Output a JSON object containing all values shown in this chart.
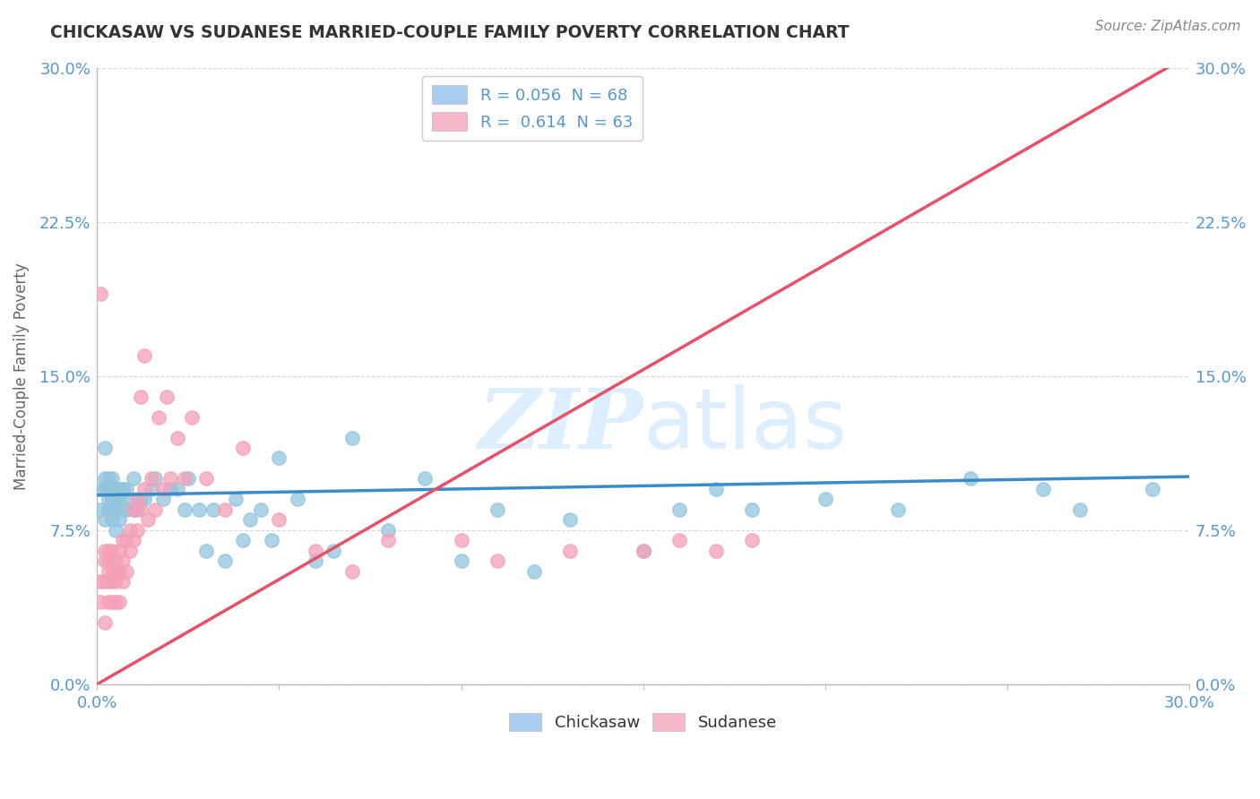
{
  "title": "CHICKASAW VS SUDANESE MARRIED-COUPLE FAMILY POVERTY CORRELATION CHART",
  "source": "Source: ZipAtlas.com",
  "ylabel": "Married-Couple Family Poverty",
  "xlim": [
    0.0,
    0.3
  ],
  "ylim": [
    0.0,
    0.3
  ],
  "xtick_vals": [
    0.0,
    0.05,
    0.1,
    0.15,
    0.2,
    0.25,
    0.3
  ],
  "xtick_labels_show": [
    "0.0%",
    "",
    "",
    "",
    "",
    "",
    "30.0%"
  ],
  "ytick_vals": [
    0.0,
    0.075,
    0.15,
    0.225,
    0.3
  ],
  "ytick_labels": [
    "0.0%",
    "7.5%",
    "15.0%",
    "22.5%",
    "30.0%"
  ],
  "chickasaw_R": 0.056,
  "chickasaw_N": 68,
  "sudanese_R": 0.614,
  "sudanese_N": 63,
  "chickasaw_color": "#92c5de",
  "sudanese_color": "#f4a0b8",
  "chickasaw_line_color": "#3a8cc8",
  "sudanese_line_color": "#e8506a",
  "sudanese_line_dash_color": "#f4a0b8",
  "title_color": "#333333",
  "axis_color": "#5599cc",
  "watermark_color": "#ddeeff",
  "legend_box_chickasaw": "#aaccee",
  "legend_box_sudanese": "#f4b8c8",
  "background_color": "#ffffff",
  "grid_color": "#cccccc",
  "marker_size": 120,
  "chickasaw_line_intercept": 0.092,
  "chickasaw_line_slope": 0.03,
  "sudanese_line_intercept": 0.0,
  "sudanese_line_slope": 1.02,
  "chickasaw_x": [
    0.001,
    0.001,
    0.002,
    0.002,
    0.002,
    0.002,
    0.003,
    0.003,
    0.003,
    0.003,
    0.004,
    0.004,
    0.004,
    0.004,
    0.005,
    0.005,
    0.005,
    0.005,
    0.006,
    0.006,
    0.006,
    0.007,
    0.007,
    0.008,
    0.008,
    0.009,
    0.01,
    0.01,
    0.011,
    0.012,
    0.013,
    0.015,
    0.016,
    0.018,
    0.02,
    0.022,
    0.024,
    0.025,
    0.028,
    0.03,
    0.032,
    0.035,
    0.038,
    0.04,
    0.042,
    0.045,
    0.048,
    0.05,
    0.055,
    0.06,
    0.065,
    0.07,
    0.08,
    0.09,
    0.1,
    0.11,
    0.12,
    0.13,
    0.15,
    0.16,
    0.17,
    0.18,
    0.2,
    0.22,
    0.24,
    0.26,
    0.27,
    0.29
  ],
  "chickasaw_y": [
    0.085,
    0.095,
    0.08,
    0.095,
    0.1,
    0.115,
    0.085,
    0.09,
    0.095,
    0.1,
    0.08,
    0.085,
    0.09,
    0.1,
    0.075,
    0.085,
    0.09,
    0.095,
    0.08,
    0.09,
    0.095,
    0.085,
    0.095,
    0.085,
    0.095,
    0.09,
    0.085,
    0.1,
    0.085,
    0.09,
    0.09,
    0.095,
    0.1,
    0.09,
    0.095,
    0.095,
    0.085,
    0.1,
    0.085,
    0.065,
    0.085,
    0.06,
    0.09,
    0.07,
    0.08,
    0.085,
    0.07,
    0.11,
    0.09,
    0.06,
    0.065,
    0.12,
    0.075,
    0.1,
    0.06,
    0.085,
    0.055,
    0.08,
    0.065,
    0.085,
    0.095,
    0.085,
    0.09,
    0.085,
    0.1,
    0.095,
    0.085,
    0.095
  ],
  "sudanese_x": [
    0.001,
    0.001,
    0.001,
    0.002,
    0.002,
    0.002,
    0.002,
    0.003,
    0.003,
    0.003,
    0.003,
    0.003,
    0.004,
    0.004,
    0.004,
    0.004,
    0.004,
    0.005,
    0.005,
    0.005,
    0.005,
    0.006,
    0.006,
    0.006,
    0.007,
    0.007,
    0.007,
    0.008,
    0.008,
    0.009,
    0.009,
    0.01,
    0.01,
    0.011,
    0.011,
    0.012,
    0.012,
    0.013,
    0.013,
    0.014,
    0.015,
    0.016,
    0.017,
    0.018,
    0.019,
    0.02,
    0.022,
    0.024,
    0.026,
    0.03,
    0.035,
    0.04,
    0.05,
    0.06,
    0.07,
    0.08,
    0.1,
    0.11,
    0.13,
    0.15,
    0.16,
    0.17,
    0.18
  ],
  "sudanese_y": [
    0.04,
    0.05,
    0.19,
    0.03,
    0.05,
    0.06,
    0.065,
    0.04,
    0.05,
    0.055,
    0.06,
    0.065,
    0.04,
    0.05,
    0.055,
    0.06,
    0.065,
    0.04,
    0.05,
    0.055,
    0.06,
    0.04,
    0.055,
    0.065,
    0.05,
    0.06,
    0.07,
    0.055,
    0.07,
    0.065,
    0.075,
    0.07,
    0.085,
    0.075,
    0.09,
    0.085,
    0.14,
    0.095,
    0.16,
    0.08,
    0.1,
    0.085,
    0.13,
    0.095,
    0.14,
    0.1,
    0.12,
    0.1,
    0.13,
    0.1,
    0.085,
    0.115,
    0.08,
    0.065,
    0.055,
    0.07,
    0.07,
    0.06,
    0.065,
    0.065,
    0.07,
    0.065,
    0.07
  ]
}
